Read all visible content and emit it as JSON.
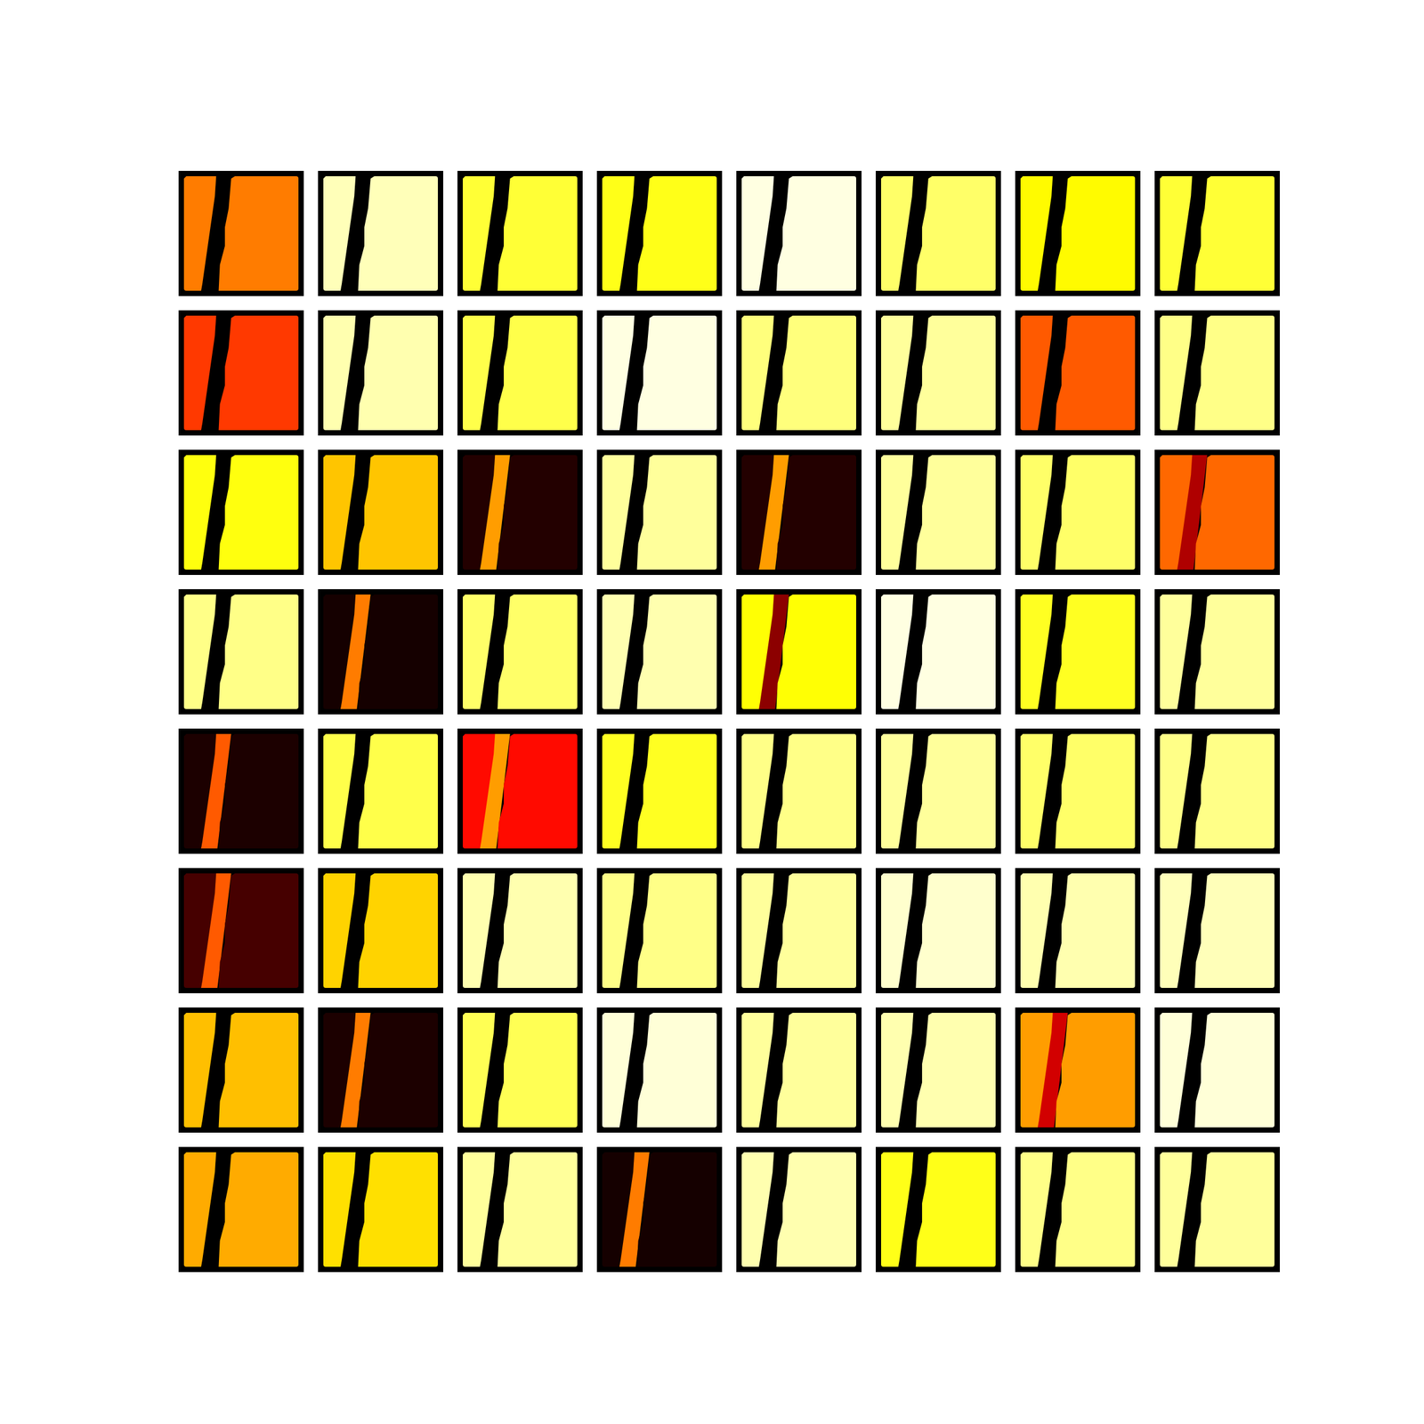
{
  "chart_data": {
    "type": "image_grid",
    "tick_labels": false,
    "color_range": [
      0,
      1
    ],
    "cells": [
      [
        0.55,
        0.93,
        0.8,
        0.77,
        0.97,
        0.85,
        0.74,
        0.8
      ],
      [
        0.45,
        0.92,
        0.82,
        0.97,
        0.87,
        0.9,
        0.5,
        0.88
      ],
      [
        0.76,
        0.66,
        0.05,
        0.9,
        0.05,
        0.9,
        0.85,
        0.52
      ],
      [
        0.88,
        0.03,
        0.85,
        0.92,
        0.75,
        0.97,
        0.78,
        0.9
      ],
      [
        0.04,
        0.82,
        0.38,
        0.78,
        0.88,
        0.9,
        0.85,
        0.88
      ],
      [
        0.1,
        0.68,
        0.92,
        0.88,
        0.9,
        0.95,
        0.92,
        0.93
      ],
      [
        0.65,
        0.04,
        0.83,
        0.96,
        0.9,
        0.92,
        0.6,
        0.96
      ],
      [
        0.62,
        0.7,
        0.9,
        0.03,
        0.92,
        0.77,
        0.88,
        0.9
      ]
    ],
    "band": [
      [
        0,
        0,
        0,
        0,
        0,
        0,
        0,
        0
      ],
      [
        0,
        0,
        0,
        0,
        0,
        0,
        0,
        0
      ],
      [
        0,
        0,
        0.6,
        0,
        0.6,
        0,
        0,
        0.25
      ],
      [
        0,
        0.55,
        0,
        0,
        0.2,
        0,
        0,
        0
      ],
      [
        0.5,
        0,
        0.6,
        0,
        0,
        0,
        0,
        0
      ],
      [
        0.5,
        0,
        0,
        0,
        0,
        0,
        0,
        0
      ],
      [
        0,
        0.55,
        0,
        0,
        0,
        0,
        0.3,
        0
      ],
      [
        0,
        0,
        0,
        0.55,
        0,
        0,
        0,
        0
      ]
    ]
  }
}
